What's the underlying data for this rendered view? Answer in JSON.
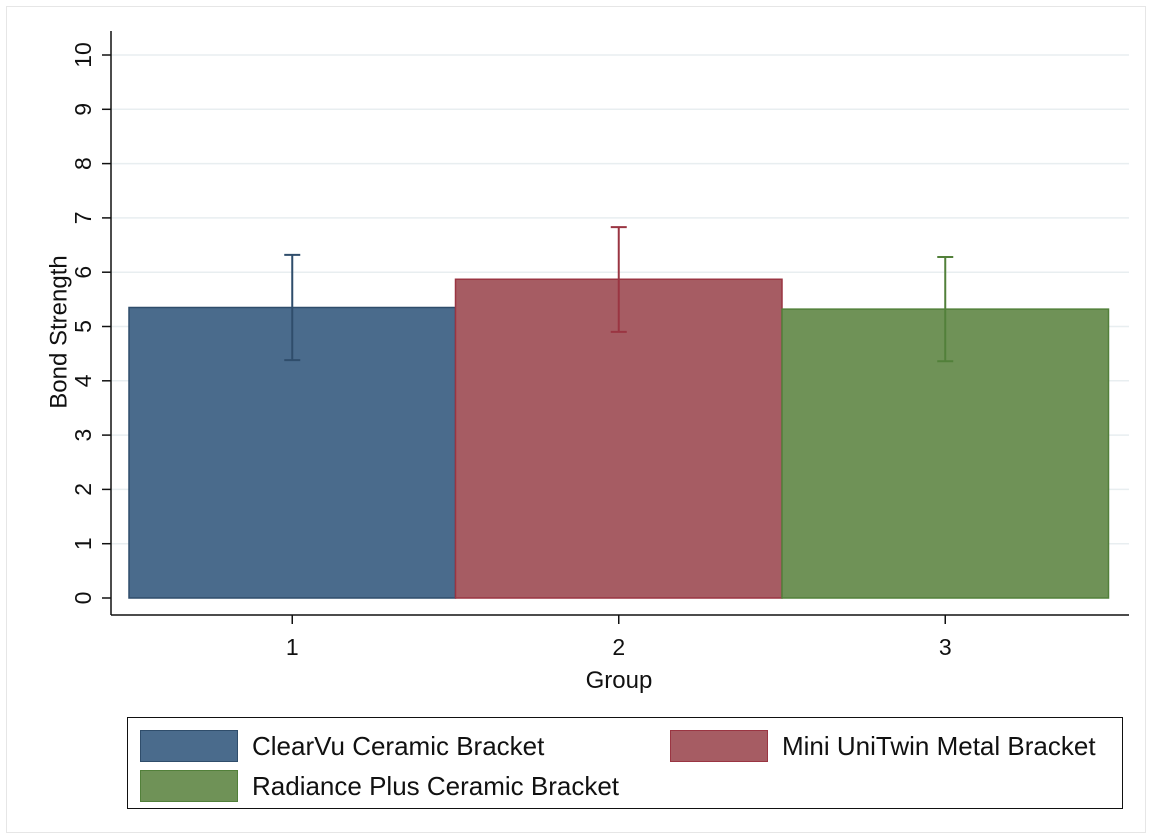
{
  "chart_data": {
    "type": "bar",
    "xlabel": "Group",
    "ylabel": "Bond Strength",
    "ylim": [
      0,
      10
    ],
    "yticks": [
      "0",
      "1",
      "2",
      "3",
      "4",
      "5",
      "6",
      "7",
      "8",
      "9",
      "10"
    ],
    "categories": [
      "1",
      "2",
      "3"
    ],
    "grid": true,
    "series": [
      {
        "name": "ClearVu Ceramic Bracket",
        "category": "1",
        "value": 5.35,
        "error_low": 4.38,
        "error_high": 6.32,
        "color": "#4a6b8c",
        "edge": "#2f4d6b"
      },
      {
        "name": "Mini UniTwin Metal Bracket",
        "category": "2",
        "value": 5.87,
        "error_low": 4.9,
        "error_high": 6.83,
        "color": "#a65c63",
        "edge": "#9a3542"
      },
      {
        "name": "Radiance Plus Ceramic Bracket",
        "category": "3",
        "value": 5.32,
        "error_low": 4.36,
        "error_high": 6.28,
        "color": "#6f9257",
        "edge": "#52803a"
      }
    ],
    "legend_position": "bottom"
  }
}
